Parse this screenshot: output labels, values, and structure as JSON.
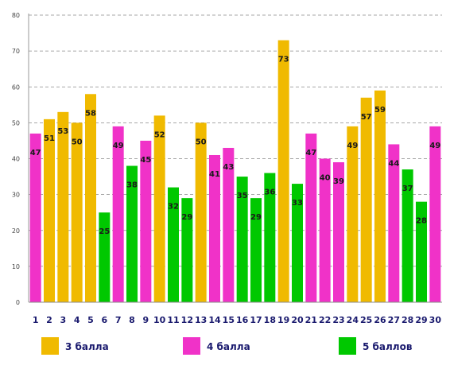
{
  "chart_data": {
    "type": "bar",
    "title": "",
    "xlabel": "",
    "ylabel": "",
    "ylim": [
      0,
      80
    ],
    "y_ticks": [
      "0",
      "10",
      "20",
      "30",
      "40",
      "50",
      "60",
      "70",
      "80"
    ],
    "grid": true,
    "legend_position": "bottom",
    "categories": [
      "1",
      "2",
      "3",
      "4",
      "5",
      "6",
      "7",
      "8",
      "9",
      "10",
      "11",
      "12",
      "13",
      "14",
      "15",
      "16",
      "17",
      "18",
      "19",
      "20",
      "21",
      "22",
      "23",
      "24",
      "25",
      "26",
      "27",
      "28",
      "29",
      "30"
    ],
    "values": [
      47,
      51,
      53,
      50,
      58,
      25,
      49,
      38,
      45,
      52,
      32,
      29,
      50,
      41,
      43,
      35,
      29,
      36,
      73,
      33,
      47,
      40,
      39,
      49,
      57,
      59,
      44,
      37,
      28,
      49
    ],
    "value_labels": [
      "47",
      "51",
      "53",
      "50",
      "58",
      "25",
      "49",
      "38",
      "45",
      "52",
      "32",
      "29",
      "50",
      "41",
      "43",
      "35",
      "29",
      "36",
      "73",
      "33",
      "47",
      "40",
      "39",
      "49",
      "57",
      "59",
      "44",
      "37",
      "28",
      "49"
    ],
    "bar_group": [
      "4 балла",
      "3 балла",
      "3 балла",
      "3 балла",
      "3 балла",
      "5 баллов",
      "4 балла",
      "5 баллов",
      "4 балла",
      "3 балла",
      "5 баллов",
      "5 баллов",
      "3 балла",
      "4 балла",
      "4 балла",
      "5 баллов",
      "5 баллов",
      "5 баллов",
      "3 балла",
      "5 баллов",
      "4 балла",
      "4 балла",
      "4 балла",
      "3 балла",
      "3 балла",
      "3 балла",
      "4 балла",
      "5 баллов",
      "5 баллов",
      "4 балла"
    ],
    "legend": [
      {
        "label": "3 балла",
        "color": "#F0BA00"
      },
      {
        "label": "4 балла",
        "color": "#F032C8"
      },
      {
        "label": "5 баллов",
        "color": "#00C800"
      }
    ]
  }
}
